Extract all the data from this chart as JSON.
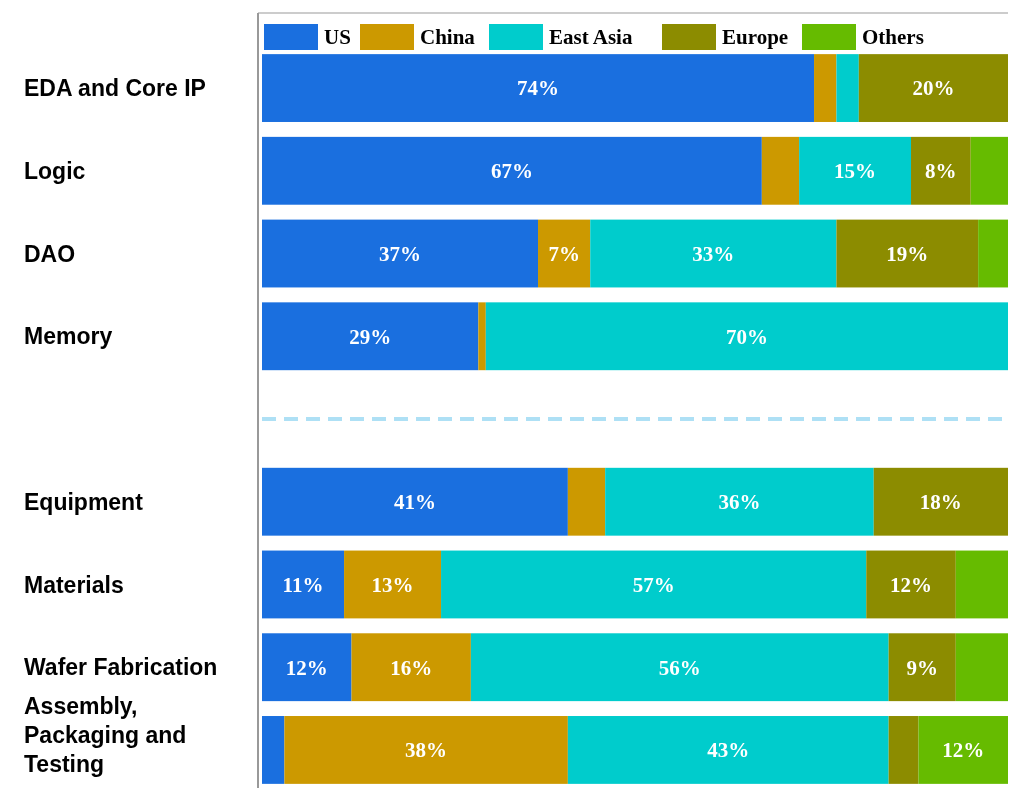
{
  "chart_data": {
    "type": "bar",
    "orientation": "horizontal",
    "stacked": true,
    "categories": [
      "EDA and Core IP",
      "Logic",
      "DAO",
      "Memory",
      null,
      "Equipment",
      "Materials",
      "Wafer Fabrication",
      "Assembly, Packaging and Testing"
    ],
    "xlim": [
      0,
      100
    ],
    "tick_labels": "y",
    "legend": "top",
    "series": [
      {
        "name": "US",
        "color": "#1a6fdf",
        "values": [
          74,
          67,
          37,
          29,
          null,
          41,
          11,
          12,
          3
        ],
        "value_labels": [
          "74%",
          "67%",
          "37%",
          "29%",
          null,
          "41%",
          "11%",
          "12%",
          null
        ]
      },
      {
        "name": "China",
        "color": "#cc9900",
        "values": [
          3,
          5,
          7,
          1,
          null,
          5,
          13,
          16,
          38
        ],
        "value_labels": [
          null,
          null,
          "7%",
          null,
          null,
          null,
          "13%",
          "16%",
          "38%"
        ]
      },
      {
        "name": "East Asia",
        "color": "#00cccc",
        "values": [
          3,
          15,
          33,
          70,
          null,
          36,
          57,
          56,
          43
        ],
        "value_labels": [
          null,
          "15%",
          "33%",
          "70%",
          null,
          "36%",
          "57%",
          "56%",
          "43%"
        ]
      },
      {
        "name": "Europe",
        "color": "#8c8c00",
        "values": [
          20,
          8,
          19,
          0,
          null,
          18,
          12,
          9,
          4
        ],
        "value_labels": [
          "20%",
          "8%",
          "19%",
          null,
          null,
          "18%",
          "12%",
          "9%",
          null
        ]
      },
      {
        "name": "Others",
        "color": "#66bb00",
        "values": [
          0,
          5,
          4,
          0,
          null,
          0,
          7,
          7,
          12
        ],
        "value_labels": [
          null,
          null,
          null,
          null,
          null,
          null,
          null,
          null,
          "12%"
        ]
      }
    ]
  }
}
